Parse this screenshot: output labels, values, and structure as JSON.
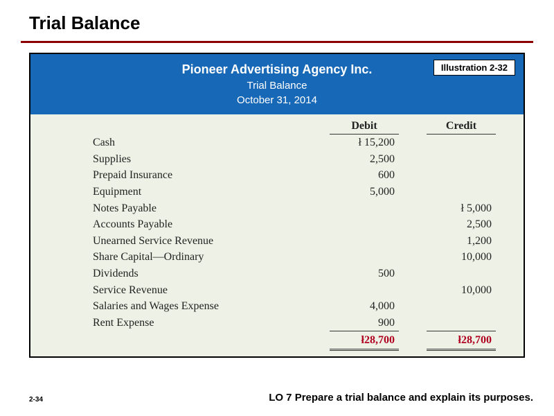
{
  "page": {
    "title": "Trial Balance",
    "page_number": "2-34",
    "learning_objective": "LO 7  Prepare a trial balance and explain its purposes."
  },
  "illustration": {
    "badge": "Illustration 2-32",
    "company": "Pioneer Advertising Agency Inc.",
    "subtitle1": "Trial Balance",
    "subtitle2": "October 31, 2014",
    "headers": {
      "debit": "Debit",
      "credit": "Credit"
    },
    "currency_symbol": "ł",
    "rows": [
      {
        "account": "Cash",
        "debit": "15,200",
        "credit": "",
        "debit_sym": true,
        "credit_sym": false
      },
      {
        "account": "Supplies",
        "debit": "2,500",
        "credit": "",
        "debit_sym": false,
        "credit_sym": false
      },
      {
        "account": "Prepaid Insurance",
        "debit": "600",
        "credit": "",
        "debit_sym": false,
        "credit_sym": false
      },
      {
        "account": "Equipment",
        "debit": "5,000",
        "credit": "",
        "debit_sym": false,
        "credit_sym": false
      },
      {
        "account": "Notes Payable",
        "debit": "",
        "credit": "5,000",
        "debit_sym": false,
        "credit_sym": true
      },
      {
        "account": "Accounts Payable",
        "debit": "",
        "credit": "2,500",
        "debit_sym": false,
        "credit_sym": false
      },
      {
        "account": "Unearned Service Revenue",
        "debit": "",
        "credit": "1,200",
        "debit_sym": false,
        "credit_sym": false
      },
      {
        "account": "Share Capital—Ordinary",
        "debit": "",
        "credit": "10,000",
        "debit_sym": false,
        "credit_sym": false
      },
      {
        "account": "Dividends",
        "debit": "500",
        "credit": "",
        "debit_sym": false,
        "credit_sym": false
      },
      {
        "account": "Service Revenue",
        "debit": "",
        "credit": "10,000",
        "debit_sym": false,
        "credit_sym": false
      },
      {
        "account": "Salaries and Wages Expense",
        "debit": "4,000",
        "credit": "",
        "debit_sym": false,
        "credit_sym": false
      },
      {
        "account": "Rent Expense",
        "debit": "900",
        "credit": "",
        "debit_sym": false,
        "credit_sym": false
      }
    ],
    "totals": {
      "debit": "28,700",
      "credit": "28,700"
    }
  },
  "style": {
    "header_bg": "#1868b8",
    "body_bg": "#eef1e6",
    "title_rule": "#8b0000",
    "total_color": "#b00020"
  }
}
